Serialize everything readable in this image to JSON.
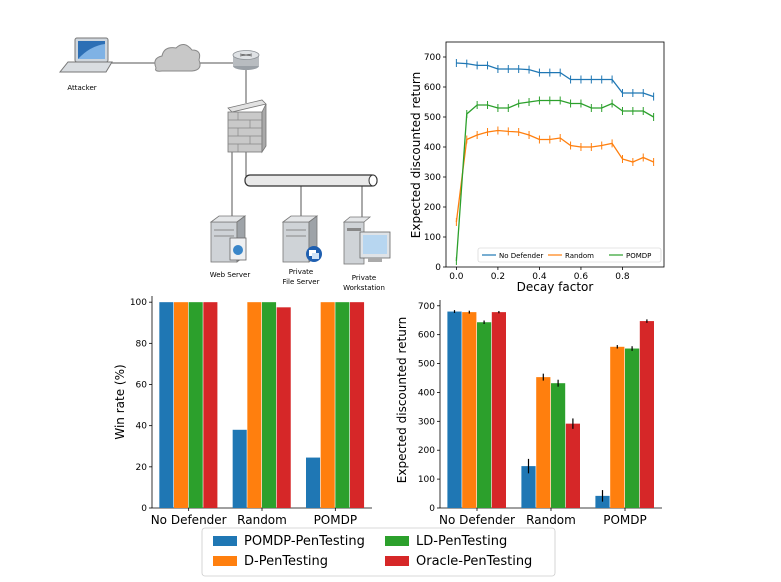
{
  "colors": {
    "blue": "#1f77b4",
    "orange": "#ff7f0e",
    "green": "#2ca02c",
    "red": "#d62728"
  },
  "network": {
    "attacker": "Attacker",
    "web_server": "Web Server",
    "file_server_line1": "Private",
    "file_server_line2": "File Server",
    "workstation_line1": "Private",
    "workstation_line2": "Workstation"
  },
  "legend": {
    "pomdp_pentesting": "POMDP-PenTesting",
    "d_pentesting": "D-PenTesting",
    "ld_pentesting": "LD-PenTesting",
    "oracle_pentesting": "Oracle-PenTesting"
  },
  "chart_data": [
    {
      "type": "line",
      "title": "",
      "xlabel": "Decay factor",
      "ylabel": "Expected discounted return",
      "xlim": [
        -0.05,
        1.0
      ],
      "ylim": [
        0,
        750
      ],
      "xticks": [
        "0.0",
        "0.2",
        "0.4",
        "0.6",
        "0.8"
      ],
      "yticks": [
        "0",
        "100",
        "200",
        "300",
        "400",
        "500",
        "600",
        "700"
      ],
      "legend_position": "bottom",
      "x": [
        0.0,
        0.05,
        0.1,
        0.15,
        0.2,
        0.25,
        0.3,
        0.35,
        0.4,
        0.45,
        0.5,
        0.55,
        0.6,
        0.65,
        0.7,
        0.75,
        0.8,
        0.85,
        0.9,
        0.95
      ],
      "series": [
        {
          "name": "No Defender",
          "color": "#1f77b4",
          "values": [
            680,
            678,
            672,
            672,
            660,
            660,
            660,
            658,
            648,
            648,
            648,
            625,
            625,
            625,
            625,
            625,
            580,
            580,
            580,
            568
          ]
        },
        {
          "name": "Random",
          "color": "#ff7f0e",
          "values": [
            150,
            425,
            440,
            450,
            455,
            452,
            450,
            440,
            425,
            425,
            430,
            405,
            400,
            400,
            405,
            412,
            360,
            350,
            365,
            350
          ]
        },
        {
          "name": "POMDP",
          "color": "#2ca02c",
          "values": [
            20,
            510,
            540,
            540,
            530,
            530,
            545,
            550,
            555,
            555,
            555,
            545,
            545,
            530,
            530,
            545,
            520,
            520,
            520,
            500
          ]
        }
      ]
    },
    {
      "type": "bar",
      "title": "",
      "xlabel": "",
      "ylabel": "Win rate (%)",
      "ylim": [
        0,
        103
      ],
      "yticks": [
        "0",
        "20",
        "40",
        "60",
        "80",
        "100"
      ],
      "categories": [
        "No Defender",
        "Random",
        "POMDP"
      ],
      "series": [
        {
          "name": "POMDP-PenTesting",
          "color": "#1f77b4",
          "values": [
            100,
            38,
            24.5
          ]
        },
        {
          "name": "D-PenTesting",
          "color": "#ff7f0e",
          "values": [
            100,
            100,
            100
          ]
        },
        {
          "name": "LD-PenTesting",
          "color": "#2ca02c",
          "values": [
            100,
            100,
            100
          ]
        },
        {
          "name": "Oracle-PenTesting",
          "color": "#d62728",
          "values": [
            100,
            97.5,
            100
          ]
        }
      ]
    },
    {
      "type": "bar",
      "title": "",
      "xlabel": "",
      "ylabel": "Expected discounted return",
      "ylim": [
        0,
        720
      ],
      "yticks": [
        "0",
        "100",
        "200",
        "300",
        "400",
        "500",
        "600",
        "700"
      ],
      "categories": [
        "No Defender",
        "Random",
        "POMDP"
      ],
      "series": [
        {
          "name": "POMDP-PenTesting",
          "color": "#1f77b4",
          "values": [
            680,
            145,
            42
          ],
          "errors": [
            5,
            25,
            20
          ]
        },
        {
          "name": "D-PenTesting",
          "color": "#ff7f0e",
          "values": [
            678,
            453,
            558
          ],
          "errors": [
            5,
            12,
            6
          ]
        },
        {
          "name": "LD-PenTesting",
          "color": "#2ca02c",
          "values": [
            643,
            432,
            552
          ],
          "errors": [
            6,
            12,
            8
          ]
        },
        {
          "name": "Oracle-PenTesting",
          "color": "#d62728",
          "values": [
            678,
            292,
            647
          ],
          "errors": [
            4,
            18,
            6
          ]
        }
      ]
    }
  ]
}
